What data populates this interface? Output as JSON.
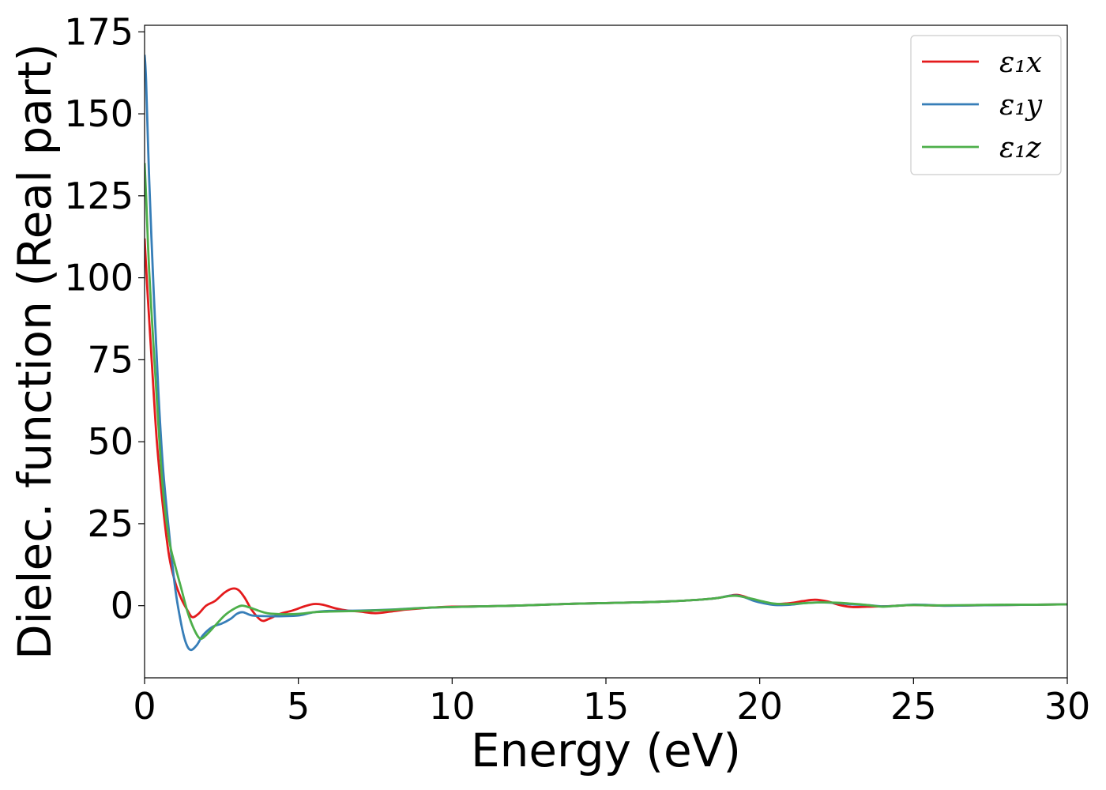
{
  "chart_data": {
    "type": "line",
    "xlabel": "Energy (eV)",
    "ylabel": "Dielec. function (Real part)",
    "xlim": [
      0,
      30
    ],
    "ylim": [
      -22,
      177
    ],
    "xticks": [
      0,
      5,
      10,
      15,
      20,
      25,
      30
    ],
    "yticks": [
      0,
      25,
      50,
      75,
      100,
      125,
      150,
      175
    ],
    "grid": false,
    "legend": {
      "placement": "top-right"
    },
    "series": [
      {
        "name": "ε₁x",
        "color": "#e41a1c",
        "x": [
          0,
          0.1,
          0.25,
          0.4,
          0.6,
          0.8,
          1.0,
          1.2,
          1.4,
          1.55,
          1.75,
          2.0,
          2.3,
          2.6,
          2.85,
          3.05,
          3.25,
          3.5,
          3.8,
          4.05,
          4.4,
          4.8,
          5.2,
          5.5,
          5.8,
          6.2,
          6.6,
          7.0,
          7.5,
          8.0,
          8.5,
          9.0,
          9.5,
          10,
          11,
          12,
          13,
          14,
          15,
          16,
          17,
          18,
          18.6,
          19.0,
          19.25,
          19.5,
          19.8,
          20.1,
          20.5,
          21.0,
          21.4,
          21.8,
          22.2,
          22.6,
          23.0,
          23.5,
          24.0,
          24.5,
          25.0,
          25.5,
          26,
          27,
          28,
          29,
          30
        ],
        "values": [
          112,
          95,
          72,
          50,
          30,
          15,
          7,
          2,
          -1.5,
          -3.5,
          -2.5,
          0,
          1.5,
          4,
          5.2,
          4.8,
          2.5,
          -1.5,
          -4.5,
          -4,
          -2.5,
          -1.5,
          -0.2,
          0.5,
          0.3,
          -0.8,
          -1.5,
          -1.8,
          -2.3,
          -1.8,
          -1.2,
          -0.8,
          -0.5,
          -0.3,
          -0.2,
          0,
          0.3,
          0.6,
          0.8,
          1,
          1.3,
          1.8,
          2.3,
          3,
          3.3,
          2.8,
          1.8,
          1,
          0.5,
          0.8,
          1.4,
          1.8,
          1.3,
          0.2,
          -0.4,
          -0.3,
          -0.2,
          0,
          0.2,
          0.1,
          0,
          0.1,
          0.2,
          0.3,
          0.4
        ]
      },
      {
        "name": "ε₁y",
        "color": "#377eb8",
        "x": [
          0,
          0.05,
          0.15,
          0.3,
          0.45,
          0.6,
          0.8,
          1.0,
          1.2,
          1.35,
          1.5,
          1.7,
          1.9,
          2.2,
          2.5,
          2.8,
          3.0,
          3.2,
          3.5,
          4.0,
          4.5,
          5.0,
          5.5,
          6.0,
          7.0,
          8.0,
          9.0,
          10,
          11,
          12,
          13,
          14,
          15,
          16,
          17,
          18,
          18.6,
          19.0,
          19.25,
          19.5,
          19.8,
          20.1,
          20.5,
          21.0,
          21.5,
          22.0,
          22.5,
          23.0,
          23.5,
          24.0,
          24.5,
          25.0,
          25.5,
          26,
          27,
          28,
          29,
          30
        ],
        "values": [
          168,
          160,
          130,
          95,
          65,
          42,
          22,
          5,
          -6,
          -11.5,
          -13.5,
          -12,
          -9,
          -6.5,
          -5.5,
          -4,
          -2.5,
          -2,
          -3,
          -3.2,
          -3.2,
          -3,
          -2,
          -1.6,
          -1.5,
          -1.2,
          -0.7,
          -0.4,
          -0.2,
          0,
          0.3,
          0.6,
          0.8,
          1,
          1.3,
          1.8,
          2.3,
          3,
          3.1,
          2.6,
          1.5,
          0.8,
          0.2,
          0.3,
          0.8,
          1,
          0.8,
          0.4,
          0.2,
          -0.2,
          0,
          0.3,
          0.2,
          0,
          0.1,
          0.2,
          0.3,
          0.4
        ]
      },
      {
        "name": "ε₁z",
        "color": "#4daf4a",
        "x": [
          0,
          0.05,
          0.15,
          0.3,
          0.45,
          0.6,
          0.8,
          1.0,
          1.2,
          1.4,
          1.6,
          1.8,
          2.0,
          2.3,
          2.6,
          2.9,
          3.15,
          3.4,
          3.7,
          4.0,
          4.5,
          5.0,
          5.5,
          6.0,
          7.0,
          8.0,
          9.0,
          10,
          11,
          12,
          13,
          14,
          15,
          16,
          17,
          18,
          18.6,
          19.0,
          19.25,
          19.5,
          19.8,
          20.1,
          20.5,
          21.0,
          21.5,
          22.0,
          22.5,
          23.0,
          23.5,
          24.0,
          24.5,
          25.0,
          25.5,
          26,
          27,
          28,
          29,
          30
        ],
        "values": [
          135,
          125,
          102,
          78,
          55,
          35,
          20,
          12,
          5,
          -2,
          -7,
          -10,
          -9,
          -6,
          -3,
          -1,
          0,
          -0.5,
          -1.5,
          -2.3,
          -2.6,
          -2.5,
          -2,
          -1.8,
          -1.6,
          -1.3,
          -0.7,
          -0.4,
          -0.2,
          0,
          0.3,
          0.6,
          0.8,
          1,
          1.3,
          1.8,
          2.3,
          2.9,
          3,
          2.6,
          2,
          1.3,
          0.6,
          0.5,
          0.8,
          1,
          0.9,
          0.6,
          0.2,
          -0.3,
          0,
          0.2,
          0.1,
          0.1,
          0.2,
          0.3,
          0.3,
          0.4
        ]
      }
    ]
  }
}
